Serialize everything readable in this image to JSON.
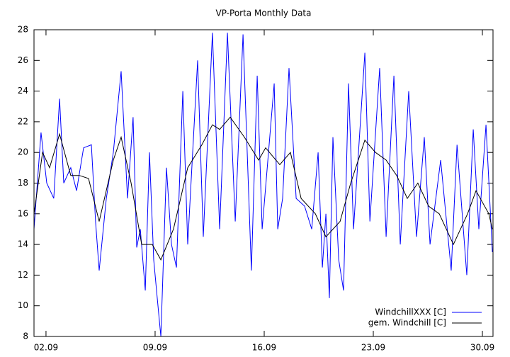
{
  "chart_data": {
    "type": "line",
    "title": "VP-Porta Monthly Data",
    "xlim": [
      1.23,
      30.68
    ],
    "ylim": [
      8,
      28
    ],
    "xticks": [
      {
        "value": 2,
        "label": "02.09"
      },
      {
        "value": 9,
        "label": "09.09"
      },
      {
        "value": 16,
        "label": "16.09"
      },
      {
        "value": 23,
        "label": "23.09"
      },
      {
        "value": 30,
        "label": "30.09"
      }
    ],
    "yticks": [
      8,
      10,
      12,
      14,
      16,
      18,
      20,
      22,
      24,
      26,
      28
    ],
    "grid": false,
    "legend": "lower right",
    "series": [
      {
        "name": "WindchillXXX [C]",
        "color": "#0000ff",
        "x": [
          1.23,
          1.68,
          2.05,
          2.5,
          2.87,
          3.14,
          3.59,
          3.96,
          4.41,
          4.91,
          5.18,
          5.41,
          5.87,
          6.32,
          6.82,
          7.23,
          7.59,
          7.82,
          8.05,
          8.37,
          8.64,
          8.91,
          9.14,
          9.37,
          9.73,
          10.05,
          10.37,
          10.78,
          11.09,
          11.73,
          12.09,
          12.68,
          13.14,
          13.64,
          14.14,
          14.64,
          15.18,
          15.55,
          15.87,
          16.64,
          16.87,
          17.18,
          17.59,
          18.05,
          18.59,
          19.05,
          19.46,
          19.73,
          19.96,
          20.18,
          20.41,
          20.78,
          21.09,
          21.41,
          21.73,
          22.46,
          22.78,
          23.41,
          23.82,
          24.32,
          24.73,
          25.27,
          25.77,
          26.27,
          26.64,
          27.32,
          28.0,
          28.37,
          29.0,
          29.41,
          29.77,
          30.23,
          30.64
        ],
        "values": [
          15,
          21.3,
          18,
          17,
          23.5,
          18,
          19,
          17.5,
          20.3,
          20.5,
          15.5,
          12.3,
          17,
          20,
          25.3,
          17,
          22.3,
          13.8,
          15,
          11,
          20,
          13,
          10.5,
          8,
          19,
          14,
          12.5,
          24,
          14,
          26,
          14.5,
          27.8,
          15,
          27.8,
          15.5,
          27.7,
          12.3,
          25,
          15,
          24.5,
          15,
          17,
          25.5,
          17,
          16.5,
          15,
          20,
          12.5,
          16,
          10.5,
          21,
          13,
          11,
          24.5,
          15,
          26.5,
          15.5,
          25.5,
          14.5,
          25,
          14,
          24,
          14.5,
          21,
          14,
          19.5,
          12.3,
          20.5,
          12,
          21.5,
          15,
          21.8,
          13.5
        ]
      },
      {
        "name": "gem. Windchill [C]",
        "color": "#000000",
        "x": [
          1.23,
          1.78,
          2.23,
          2.87,
          3.59,
          4.14,
          4.73,
          5.41,
          6.32,
          6.82,
          7.46,
          8.14,
          8.82,
          9.37,
          10.18,
          11.09,
          12.0,
          12.68,
          13.14,
          13.82,
          14.73,
          15.64,
          16.09,
          17.0,
          17.68,
          18.37,
          19.28,
          19.96,
          20.87,
          21.55,
          22.46,
          23.14,
          23.82,
          24.5,
          25.18,
          25.86,
          26.55,
          27.23,
          28.14,
          29.05,
          29.59,
          30.41,
          30.64
        ],
        "values": [
          16,
          20,
          19,
          21.2,
          18.5,
          18.5,
          18.3,
          15.5,
          19.5,
          21,
          18,
          14,
          14,
          13,
          15,
          19,
          20.5,
          21.8,
          21.5,
          22.3,
          21,
          19.5,
          20.3,
          19.2,
          20,
          17,
          16,
          14.5,
          15.5,
          18,
          20.8,
          20,
          19.5,
          18.5,
          17,
          18,
          16.5,
          16,
          14,
          16,
          17.5,
          16,
          15
        ]
      }
    ]
  }
}
